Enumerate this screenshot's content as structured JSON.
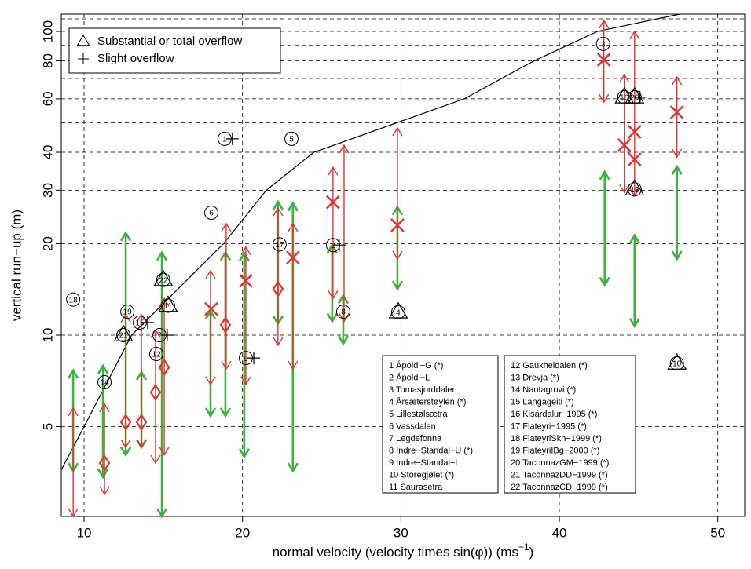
{
  "chart_data": {
    "type": "scatter",
    "ylabel": "vertical run−up (m)",
    "xlabel": {
      "text": "normal velocity (velocity times sin(φ)) (ms",
      "superscript": "−1",
      "suffix": ")"
    },
    "xlim": [
      8.56,
      51.7
    ],
    "ylim": [
      2.53,
      114
    ],
    "log_y": true,
    "xticks": [
      10,
      20,
      30,
      40,
      50
    ],
    "yticks": [
      5,
      10,
      20,
      30,
      40,
      60,
      80,
      100
    ],
    "ygrid": [
      5,
      10,
      20,
      30,
      40,
      50,
      60,
      70,
      80,
      90,
      100,
      110
    ],
    "grid": true,
    "legend": {
      "position": "top-left",
      "entries": [
        {
          "name": "Substantial or total overflow",
          "marker": "triangle"
        },
        {
          "name": "Slight overflow",
          "marker": "plus"
        }
      ]
    },
    "curve": {
      "color": "#000000",
      "x": [
        8.56,
        10,
        13,
        18.8,
        21.5,
        24.5,
        34,
        38.4,
        42.4,
        47.6
      ],
      "y": [
        3.6,
        5,
        10,
        20,
        30,
        40,
        60,
        80,
        100,
        114
      ]
    },
    "sites": {
      "labels": [
        "1",
        "2",
        "3",
        "4",
        "5",
        "6",
        "7",
        "8",
        "9",
        "10",
        "11",
        "12",
        "13",
        "14",
        "15",
        "16",
        "17",
        "18",
        "19",
        "20",
        "21",
        "22"
      ],
      "x": [
        18.87,
        25.71,
        42.76,
        29.83,
        23.09,
        18.03,
        14.76,
        26.36,
        20.21,
        47.42,
        15.3,
        14.56,
        44.75,
        11.29,
        13.52,
        44.1,
        22.34,
        9.31,
        12.73,
        44.75,
        12.48,
        15.0
      ],
      "y": [
        44.3,
        19.8,
        91,
        11.9,
        44.3,
        25.3,
        10,
        11.95,
        8.41,
        8.07,
        12.5,
        8.67,
        30.2,
        7.0,
        11.0,
        60.7,
        19.9,
        13.1,
        11.95,
        60.7,
        10,
        15.2
      ]
    },
    "triangles": {
      "x": [
        29.83,
        47.42,
        44.75,
        44.1,
        44.75,
        15.0,
        12.48,
        15.3
      ],
      "y": [
        11.9,
        8.07,
        30.2,
        60.7,
        60.7,
        15.2,
        10,
        12.5
      ]
    },
    "pluses": {
      "x": [
        19.36,
        20.71,
        26.11,
        14.01,
        15.25,
        45.09
      ],
      "y": [
        44.3,
        8.41,
        19.8,
        11.0,
        10,
        60.7
      ]
    },
    "green_ranges": {
      "color": "#3cb43c",
      "x": [
        9.31,
        11.19,
        12.63,
        13.62,
        14.91,
        17.98,
        18.92,
        20.11,
        22.24,
        23.18,
        25.66,
        26.36,
        29.78,
        42.86,
        44.75,
        47.42
      ],
      "low": [
        3.57,
        3.41,
        4.03,
        4.27,
        2.53,
        5.42,
        5.42,
        3.98,
        10.9,
        3.57,
        11.1,
        9.37,
        14.2,
        14.6,
        10.7,
        17.8
      ],
      "high": [
        7.65,
        7.93,
        21.7,
        7.56,
        18.7,
        12.0,
        18.7,
        18.6,
        27.5,
        27.2,
        19.8,
        13.5,
        26.4,
        34.5,
        21.3,
        35.9
      ]
    },
    "red_ranges": {
      "color": "#e8312f",
      "x": [
        9.31,
        11.29,
        12.63,
        13.62,
        14.51,
        15.06,
        17.98,
        18.97,
        20.21,
        22.24,
        23.18,
        25.71,
        26.41,
        29.78,
        42.81,
        44.1,
        44.75,
        47.42
      ],
      "low": [
        2.53,
        2.99,
        4.27,
        4.27,
        3.79,
        4.03,
        6.88,
        7.74,
        6.88,
        9.26,
        7.74,
        13.2,
        11.1,
        17.8,
        58.5,
        29.5,
        28.7,
        38.6
      ],
      "high": [
        5.75,
        5.93,
        11.7,
        11.7,
        10.4,
        13.2,
        16.3,
        23.3,
        19.5,
        26.2,
        23.3,
        35.7,
        42.2,
        48.1,
        108.7,
        72.1,
        100,
        70.8
      ]
    },
    "red_crosses": {
      "x": [
        23.18,
        25.71,
        29.78,
        42.81,
        44.1,
        44.75,
        44.75,
        47.42,
        20.21,
        18.03
      ],
      "y": [
        18.0,
        27.4,
        23.0,
        80.7,
        42.2,
        46.7,
        37.9,
        54.2,
        15.1,
        12.2
      ]
    },
    "red_diamonds": {
      "x": [
        11.29,
        12.63,
        13.62,
        15.06,
        14.51,
        18.92,
        22.24
      ],
      "y": [
        3.79,
        5.17,
        5.17,
        7.83,
        6.48,
        10.8,
        14.2
      ]
    },
    "site_names": [
      "1 Ápoldi−G (*)",
      "2 Ápoldi−L",
      "3 Tomasjorddalen",
      "4 Årsæterstøylen (*)",
      "5 Lillestølsætra",
      "6 Vassdalen",
      "7 Legdefonna",
      "8 Indre−Standal−U (*)",
      "9 Indre−Standal−L",
      "10 Storegjølet (*)",
      "11 Saurasetra",
      "12 Gaukheidalen (*)",
      "13 Drevja (*)",
      "14 Nautagrovi (*)",
      "15 Langageiti (*)",
      "16 Kisárdalur−1995 (*)",
      "17 Flateyri−1995 (*)",
      "18 FlateyriSkh−1999 (*)",
      "19 FlateyriIBg−2000 (*)",
      "20 TaconnazGM−1999 (*)",
      "21 TaconnazDD−1999 (*)",
      "22 TaconnazCD−1999 (*)"
    ]
  }
}
